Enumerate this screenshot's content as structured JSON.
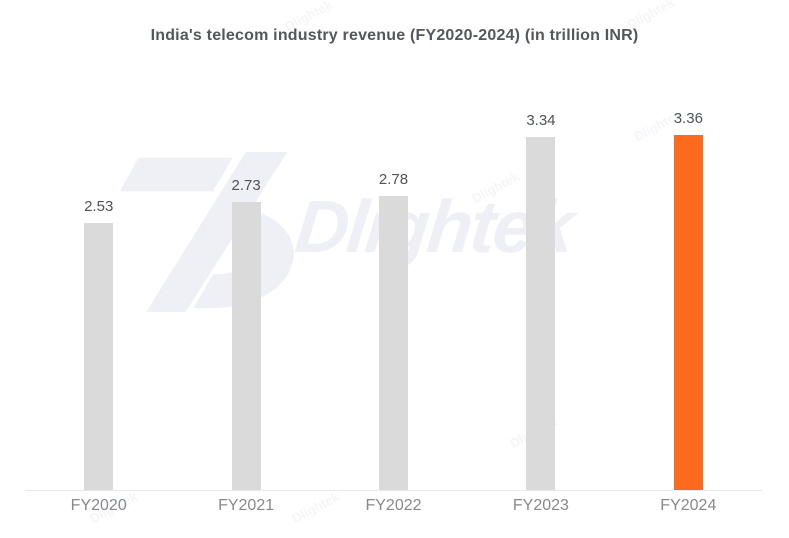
{
  "page": {
    "background": "#ffffff"
  },
  "watermark": {
    "text": "Dlightek",
    "color": "#eef0f6"
  },
  "chart_data": {
    "type": "bar",
    "title": "India's telecom industry revenue (FY2020-2024) (in trillion INR)",
    "categories": [
      "FY2020",
      "FY2021",
      "FY2022",
      "FY2023",
      "FY2024"
    ],
    "values": [
      2.53,
      2.73,
      2.78,
      3.34,
      3.36
    ],
    "value_labels": [
      "2.53",
      "2.73",
      "2.78",
      "3.34",
      "3.36"
    ],
    "xlabel": "",
    "ylabel": "",
    "ylim": [
      0,
      3.36
    ],
    "grid": false,
    "legend": "none",
    "bar_color": "#dadada",
    "highlight_index": 4,
    "highlight_color": "#fc6a1e",
    "value_label_color": "#4f5256",
    "tick_label_color": "#87898d",
    "axis_line_color": "#e8e9ea"
  }
}
